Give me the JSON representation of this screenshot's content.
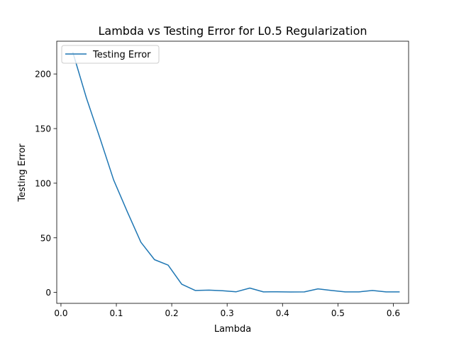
{
  "chart_data": {
    "type": "line",
    "title": "Lambda vs Testing Error for L0.5 Regularization",
    "xlabel": "Lambda",
    "ylabel": "Testing Error",
    "xlim": [
      -0.0076,
      0.6276
    ],
    "ylim": [
      -10,
      230
    ],
    "xticks": [
      0.0,
      0.1,
      0.2,
      0.3,
      0.4,
      0.5,
      0.6
    ],
    "xtick_labels": [
      "0.0",
      "0.1",
      "0.2",
      "0.3",
      "0.4",
      "0.5",
      "0.6"
    ],
    "yticks": [
      0,
      50,
      100,
      150,
      200
    ],
    "ytick_labels": [
      "0",
      "50",
      "100",
      "150",
      "200"
    ],
    "grid": false,
    "legend_position": "upper left",
    "series": [
      {
        "name": "Testing Error",
        "color": "#1f77b4",
        "x": [
          0.0213,
          0.0459,
          0.0705,
          0.0951,
          0.1197,
          0.1443,
          0.1689,
          0.1934,
          0.218,
          0.2426,
          0.2672,
          0.2918,
          0.3164,
          0.341,
          0.3656,
          0.3902,
          0.4148,
          0.4393,
          0.4639,
          0.4885,
          0.5131,
          0.5377,
          0.5623,
          0.5869,
          0.6115
        ],
        "y": [
          220,
          178,
          141,
          103,
          74,
          46,
          30,
          25,
          7.5,
          1.8,
          2.1,
          1.6,
          0.6,
          4.0,
          0.5,
          0.6,
          0.4,
          0.5,
          3.3,
          1.8,
          0.5,
          0.5,
          1.8,
          0.5,
          0.5
        ]
      }
    ]
  }
}
